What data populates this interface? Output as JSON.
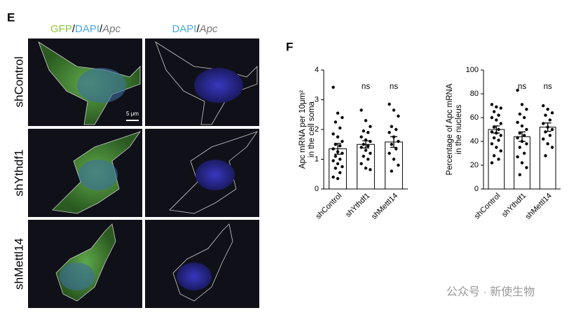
{
  "panel_labels": [
    "E",
    "F"
  ],
  "image_columns": [
    [
      "GFP",
      "/",
      "DAPI",
      "/",
      "Apc"
    ],
    [
      "DAPI",
      "/",
      "Apc"
    ]
  ],
  "image_rows": [
    "shControl",
    "shYthdf1",
    "shMettl14"
  ],
  "scale_bar": "5 μm",
  "watermark": "公众号 · 新使生物",
  "chart_data": [
    {
      "type": "bar",
      "ylabel": [
        "Apc mRNA per 10μm²",
        "in the cell soma"
      ],
      "categories": [
        "shControl",
        "shYthdf1",
        "shMettl14"
      ],
      "values": [
        1.35,
        1.5,
        1.58
      ],
      "errors": [
        0.18,
        0.12,
        0.18
      ],
      "annotations": [
        null,
        "ns",
        "ns"
      ],
      "points": [
        [
          3.42,
          2.55,
          2.4,
          2.25,
          2.05,
          1.85,
          1.75,
          1.6,
          1.5,
          1.45,
          1.35,
          1.25,
          1.2,
          1.1,
          1.0,
          0.95,
          0.85,
          0.75,
          0.7,
          0.55,
          0.4,
          0.35
        ],
        [
          2.65,
          2.3,
          2.1,
          1.95,
          1.9,
          1.75,
          1.65,
          1.6,
          1.5,
          1.45,
          1.4,
          1.3,
          1.2,
          1.1,
          1.0,
          0.85,
          0.7,
          0.65
        ],
        [
          2.85,
          2.65,
          2.45,
          2.1,
          2.0,
          1.9,
          1.75,
          1.6,
          1.5,
          1.35,
          1.2,
          1.0,
          0.8,
          0.6
        ]
      ],
      "color": "#ffffff",
      "ylim": [
        0,
        4
      ],
      "yticks": [
        0,
        1,
        2,
        3,
        4
      ]
    },
    {
      "type": "bar",
      "ylabel": [
        "Percentage of Apc mRNA",
        "in the nucleus"
      ],
      "categories": [
        "shControl",
        "shYthdf1",
        "shMettl14"
      ],
      "values": [
        50,
        44,
        52
      ],
      "errors": [
        3,
        4,
        3.5
      ],
      "annotations": [
        null,
        "ns",
        "ns"
      ],
      "points": [
        [
          71,
          69,
          68,
          65,
          62,
          60,
          58,
          55,
          52,
          50,
          48,
          47,
          45,
          43,
          41,
          38,
          35,
          32,
          28,
          25,
          22
        ],
        [
          83,
          71,
          67,
          63,
          60,
          56,
          53,
          50,
          47,
          45,
          43,
          40,
          38,
          35,
          30,
          27,
          22,
          18,
          12
        ],
        [
          70,
          67,
          64,
          62,
          58,
          55,
          52,
          50,
          48,
          45,
          42,
          38,
          35,
          28
        ]
      ],
      "color": "#ffffff",
      "ylim": [
        0,
        100
      ],
      "yticks": [
        0,
        20,
        40,
        60,
        80,
        100
      ]
    }
  ]
}
